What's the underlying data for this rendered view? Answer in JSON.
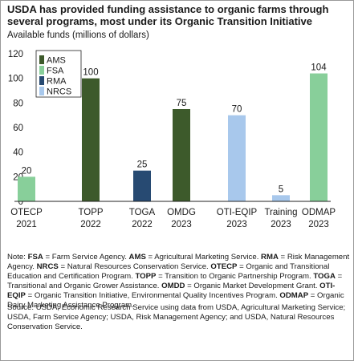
{
  "title": "USDA has provided funding assistance to organic farms through several programs, most under its Organic Transition Initiative",
  "note_parts": [
    {
      "t": "Note: ",
      "b": false
    },
    {
      "t": "FSA",
      "b": true
    },
    {
      "t": " = Farm Service Agency. ",
      "b": false
    },
    {
      "t": "AMS",
      "b": true
    },
    {
      "t": " = Agricultural Marketing Service. ",
      "b": false
    },
    {
      "t": "RMA",
      "b": true
    },
    {
      "t": " = Risk Management Agency. ",
      "b": false
    },
    {
      "t": "NRCS",
      "b": true
    },
    {
      "t": " = Natural Resources Conservation Service. ",
      "b": false
    },
    {
      "t": "OTECP",
      "b": true
    },
    {
      "t": " = Organic and Transitional Education and Certification Program. ",
      "b": false
    },
    {
      "t": "TOPP",
      "b": true
    },
    {
      "t": " = Transition to Organic Partnership Program. ",
      "b": false
    },
    {
      "t": "TOGA",
      "b": true
    },
    {
      "t": " = Transitional and Organic Grower Assistance. ",
      "b": false
    },
    {
      "t": "OMDD",
      "b": true
    },
    {
      "t": " = Organic Market Development Grant. ",
      "b": false
    },
    {
      "t": "OTI-EQIP",
      "b": true
    },
    {
      "t": " = Organic Transition Initiative, Environmental Quality Incentives Program. ",
      "b": false
    },
    {
      "t": "ODMAP",
      "b": true
    },
    {
      "t": " = Organic Dairy Marketing Assistance Program.",
      "b": false
    }
  ],
  "source": "Source: USDA, Economic Research Service using data from USDA, Agricultural Marketing Service; USDA, Farm Service Agency; USDA, Risk Management Agency; and USDA, Natural Resources Conservation Service.",
  "colors": {
    "AMS": "#3d5a2b",
    "FSA": "#88cf9a",
    "RMA": "#274a72",
    "NRCS": "#a8c8ec"
  },
  "chart_data": {
    "type": "bar",
    "ylabel": "Available funds (millions of dollars)",
    "ylim": [
      0,
      120
    ],
    "yticks": [
      0,
      20,
      40,
      60,
      80,
      100,
      120
    ],
    "grid": false,
    "legend": [
      "AMS",
      "FSA",
      "RMA",
      "NRCS"
    ],
    "legend_placement": "top-left",
    "categories": [
      {
        "name": "OTECP",
        "year": "2021",
        "value": 20,
        "agency": "FSA"
      },
      {
        "name": "TOPP",
        "year": "2022",
        "value": 100,
        "agency": "AMS"
      },
      {
        "name": "TOGA",
        "year": "2022",
        "value": 25,
        "agency": "RMA"
      },
      {
        "name": "OMDG",
        "year": "2023",
        "value": 75,
        "agency": "AMS"
      },
      {
        "name": "OTI-EQIP",
        "year": "2023",
        "value": 70,
        "agency": "NRCS"
      },
      {
        "name": "Training",
        "year": "2023",
        "value": 5,
        "agency": "NRCS"
      },
      {
        "name": "ODMAP",
        "year": "2023",
        "value": 104,
        "agency": "FSA"
      }
    ]
  }
}
